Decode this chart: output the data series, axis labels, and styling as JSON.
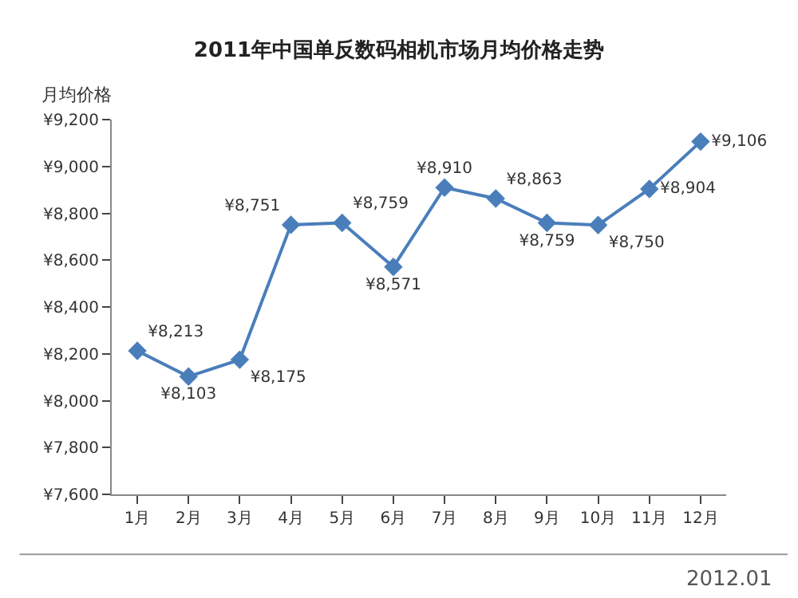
{
  "chart_data": {
    "type": "line",
    "title": "2011年中国单反数码相机市场月均价格走势",
    "ylabel": "月均价格",
    "categories": [
      "1月",
      "2月",
      "3月",
      "4月",
      "5月",
      "6月",
      "7月",
      "8月",
      "9月",
      "10月",
      "11月",
      "12月"
    ],
    "series": [
      {
        "color": "#4a7ebb",
        "values": [
          8213,
          8103,
          8175,
          8751,
          8759,
          8571,
          8910,
          8863,
          8759,
          8750,
          8904,
          9106
        ],
        "value_labels": [
          "¥8,213",
          "¥8,103",
          "¥8,175",
          "¥8,751",
          "¥8,759",
          "¥8,571",
          "¥8,910",
          "¥8,863",
          "¥8,759",
          "¥8,750",
          "¥8,904",
          "¥9,106"
        ]
      }
    ],
    "ylim": [
      7600,
      9200
    ],
    "yticks": [
      {
        "value": 7600,
        "label": "¥7,600"
      },
      {
        "value": 7800,
        "label": "¥7,800"
      },
      {
        "value": 8000,
        "label": "¥8,000"
      },
      {
        "value": 8200,
        "label": "¥8,200"
      },
      {
        "value": 8400,
        "label": "¥8,400"
      },
      {
        "value": 8600,
        "label": "¥8,600"
      },
      {
        "value": 8800,
        "label": "¥8,800"
      },
      {
        "value": 9000,
        "label": "¥9,000"
      },
      {
        "value": 9200,
        "label": "¥9,200"
      }
    ],
    "marker": "diamond",
    "line_style": "solid",
    "grid": false,
    "legend": false,
    "annotations": [
      "2012.01"
    ]
  }
}
